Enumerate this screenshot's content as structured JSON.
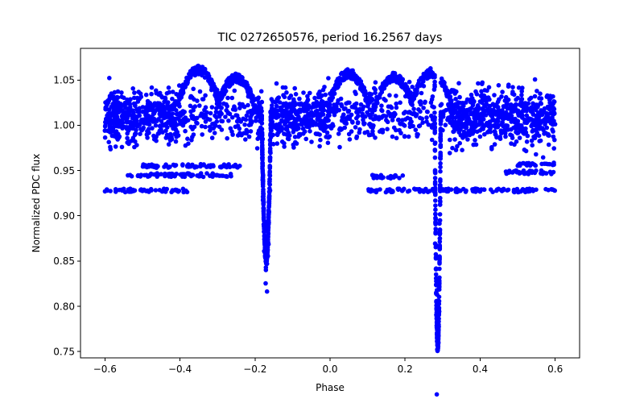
{
  "chart_data": {
    "type": "scatter",
    "title": "TIC 0272650576, period 16.2567 days",
    "xlabel": "Phase",
    "ylabel": "Normalized PDC flux",
    "xlim": [
      -0.665,
      0.665
    ],
    "ylim": [
      0.743,
      1.085
    ],
    "xticks": [
      -0.6,
      -0.4,
      -0.2,
      0.0,
      0.2,
      0.4,
      0.6
    ],
    "xtick_labels": [
      "−0.6",
      "−0.4",
      "−0.2",
      "0.0",
      "0.2",
      "0.4",
      "0.6"
    ],
    "yticks": [
      0.75,
      0.8,
      0.85,
      0.9,
      0.95,
      1.0,
      1.05
    ],
    "ytick_labels": [
      "0.75",
      "0.80",
      "0.85",
      "0.90",
      "0.95",
      "1.00",
      "1.05"
    ],
    "grid": false,
    "marker_color": "#0000ff",
    "phase_range": [
      -0.6,
      0.6
    ],
    "baseline_flux": 1.01,
    "baseline_scatter": 0.035,
    "eclipses": [
      {
        "name": "secondary eclipse",
        "phase": -0.17,
        "min_flux": 0.853,
        "half_width": 0.012
      },
      {
        "name": "primary eclipse",
        "phase": 0.287,
        "min_flux": 0.757,
        "half_width": 0.008
      }
    ],
    "lower_branches": [
      {
        "flux": 0.928,
        "phase_start": -0.6,
        "phase_end": -0.38
      },
      {
        "flux": 0.928,
        "phase_start": 0.1,
        "phase_end": 0.6
      },
      {
        "flux": 0.945,
        "phase_start": -0.54,
        "phase_end": -0.26
      },
      {
        "flux": 0.955,
        "phase_start": -0.5,
        "phase_end": -0.24
      },
      {
        "flux": 0.948,
        "phase_start": 0.46,
        "phase_end": 0.6
      },
      {
        "flux": 0.957,
        "phase_start": 0.5,
        "phase_end": 0.6
      },
      {
        "flux": 0.943,
        "phase_start": 0.11,
        "phase_end": 0.2
      }
    ],
    "flares": [
      {
        "phase": -0.35,
        "peak_flux": 1.066
      },
      {
        "phase": -0.25,
        "peak_flux": 1.057
      },
      {
        "phase": 0.05,
        "peak_flux": 1.062
      },
      {
        "phase": 0.17,
        "peak_flux": 1.058
      },
      {
        "phase": 0.27,
        "peak_flux": 1.063
      }
    ]
  }
}
